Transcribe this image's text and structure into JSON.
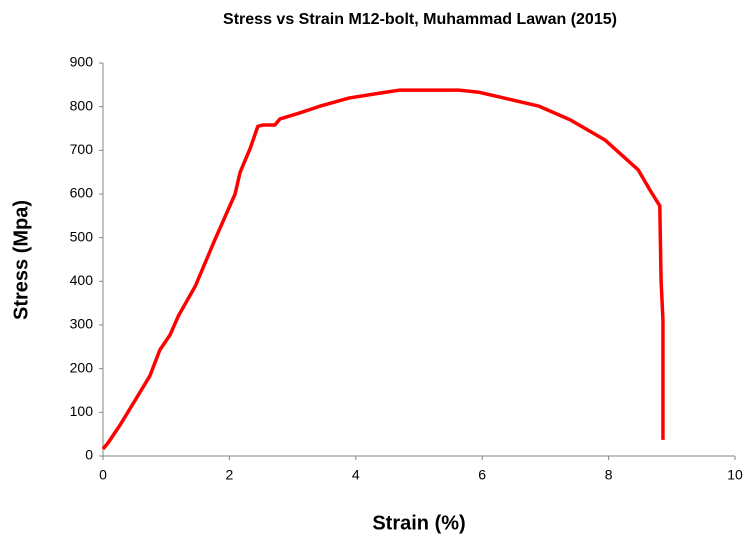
{
  "chart_data": {
    "type": "line",
    "title": "Stress vs Strain M12-bolt, Muhammad Lawan (2015)",
    "x_label": "Strain (%)",
    "y_label": "Stress (Mpa)",
    "xlim": [
      0,
      10
    ],
    "xticks": [
      0,
      2,
      4,
      6,
      8,
      10
    ],
    "ylim": [
      0,
      900
    ],
    "yticks": [
      0,
      100,
      200,
      300,
      400,
      500,
      600,
      700,
      800,
      900
    ],
    "grid": false,
    "series": [
      {
        "color": "#ff0000",
        "x": [
          0,
          0.08,
          0.27,
          0.51,
          0.74,
          0.9,
          1.06,
          1.19,
          1.46,
          1.77,
          2.09,
          2.17,
          2.33,
          2.45,
          2.53,
          2.72,
          2.8,
          3.1,
          3.43,
          3.9,
          4.38,
          4.7,
          5.63,
          5.95,
          6.28,
          6.9,
          7.39,
          7.94,
          8.47,
          8.65,
          8.81,
          8.83,
          8.86,
          8.86
        ],
        "values": [
          16,
          30,
          71,
          128,
          183,
          243,
          277,
          320,
          389,
          495,
          600,
          650,
          705,
          755,
          758,
          758,
          772,
          785,
          801,
          820,
          831,
          838,
          838,
          833,
          822,
          801,
          770,
          724,
          655,
          610,
          573,
          403,
          311,
          37
        ]
      }
    ]
  }
}
